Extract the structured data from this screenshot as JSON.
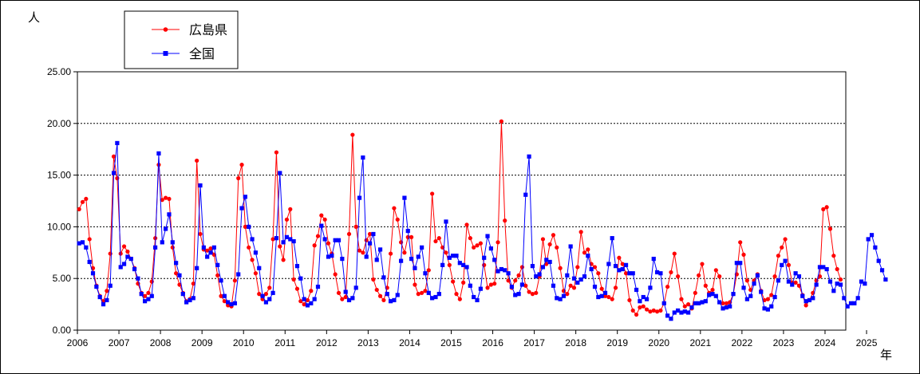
{
  "chart_data": {
    "type": "line",
    "y_unit_label": "人",
    "x_unit_label": "年",
    "ylim": [
      0,
      25
    ],
    "yticks": [
      "0.00",
      "5.00",
      "10.00",
      "15.00",
      "20.00",
      "25.00"
    ],
    "xticks": [
      "2006",
      "2007",
      "2008",
      "2009",
      "2010",
      "2011",
      "2012",
      "2013",
      "2014",
      "2015",
      "2016",
      "2017",
      "2018",
      "2019",
      "2020",
      "2021",
      "2022",
      "2023",
      "2024",
      "2025"
    ],
    "x_start": "2006-01",
    "grid": "horizontal-dashed",
    "legend_position": "top-left",
    "series": [
      {
        "name": "広島県",
        "color": "#ff0000",
        "marker": "circle",
        "values": [
          11.7,
          12.4,
          12.7,
          8.8,
          6.0,
          4.3,
          3.3,
          2.8,
          3.8,
          7.4,
          16.8,
          14.7,
          7.4,
          8.1,
          7.6,
          6.9,
          6.0,
          4.5,
          3.6,
          3.3,
          3.6,
          4.7,
          8.9,
          16.0,
          12.6,
          12.8,
          12.7,
          8.0,
          5.5,
          4.4,
          3.6,
          2.8,
          3.0,
          4.5,
          16.4,
          9.3,
          7.8,
          7.7,
          7.9,
          7.3,
          5.3,
          3.3,
          2.8,
          2.4,
          2.3,
          4.8,
          14.7,
          16.0,
          10.0,
          8.0,
          6.8,
          5.5,
          3.5,
          3.0,
          3.5,
          4.1,
          8.8,
          17.2,
          8.1,
          6.8,
          10.7,
          11.7,
          4.9,
          4.0,
          2.8,
          2.5,
          2.9,
          3.8,
          8.2,
          9.1,
          11.1,
          10.7,
          8.4,
          7.4,
          5.4,
          3.6,
          3.0,
          3.2,
          9.3,
          18.9,
          10.0,
          7.7,
          7.5,
          8.7,
          9.3,
          4.9,
          3.9,
          3.3,
          2.9,
          4.1,
          7.4,
          11.8,
          10.7,
          8.5,
          7.5,
          9.0,
          9.0,
          4.4,
          3.5,
          3.6,
          3.8,
          5.8,
          13.2,
          8.6,
          8.9,
          8.0,
          7.5,
          6.3,
          4.7,
          3.5,
          3.0,
          4.6,
          10.2,
          8.9,
          8.0,
          8.2,
          8.4,
          6.3,
          4.1,
          4.4,
          4.5,
          8.5,
          20.2,
          10.6,
          4.8,
          4.1,
          4.8,
          5.3,
          6.1,
          4.3,
          3.7,
          3.5,
          3.6,
          5.2,
          8.8,
          6.4,
          8.3,
          9.2,
          8.0,
          6.0,
          3.8,
          3.5,
          4.3,
          4.1,
          6.1,
          9.5,
          7.5,
          7.8,
          6.4,
          6.1,
          5.5,
          4.0,
          3.3,
          3.2,
          3.0,
          4.1,
          7.0,
          6.4,
          5.5,
          2.9,
          1.9,
          1.5,
          2.2,
          2.3,
          2.0,
          1.8,
          1.9,
          1.8,
          1.9,
          2.6,
          4.2,
          5.6,
          7.4,
          5.2,
          3.0,
          2.3,
          2.5,
          2.1,
          3.6,
          5.3,
          6.4,
          4.3,
          3.6,
          3.9,
          5.8,
          5.2,
          2.6,
          2.6,
          2.7,
          3.5,
          5.4,
          8.5,
          7.3,
          4.8,
          3.9,
          4.8,
          5.4,
          3.8,
          2.9,
          3.0,
          3.4,
          5.2,
          7.2,
          8.0,
          8.8,
          6.3,
          4.6,
          4.6,
          4.3,
          3.4,
          2.4,
          2.9,
          3.6,
          4.8,
          5.2,
          11.7,
          11.9,
          9.8,
          7.2,
          5.9,
          4.9
        ]
      },
      {
        "name": "全国",
        "color": "#0000ff",
        "marker": "square",
        "values": [
          8.4,
          8.5,
          8.0,
          6.6,
          5.5,
          4.2,
          3.2,
          2.5,
          2.9,
          4.3,
          15.2,
          18.1,
          6.1,
          6.4,
          7.1,
          6.9,
          5.9,
          5.0,
          3.5,
          2.8,
          3.0,
          3.3,
          8.0,
          17.1,
          8.5,
          9.8,
          11.2,
          8.5,
          6.5,
          5.3,
          3.5,
          2.7,
          2.9,
          3.1,
          6.0,
          14.0,
          8.0,
          7.1,
          7.5,
          8.0,
          6.3,
          4.8,
          3.3,
          2.7,
          2.5,
          2.6,
          5.4,
          11.8,
          12.9,
          10.0,
          8.8,
          7.5,
          6.0,
          3.3,
          2.7,
          3.0,
          3.6,
          8.9,
          15.2,
          8.5,
          9.0,
          8.8,
          8.6,
          6.2,
          5.0,
          3.0,
          2.4,
          2.6,
          3.0,
          4.2,
          10.1,
          8.8,
          7.1,
          7.2,
          8.7,
          8.7,
          6.9,
          3.7,
          2.9,
          3.1,
          4.1,
          12.8,
          16.7,
          7.1,
          8.4,
          9.3,
          6.8,
          7.8,
          5.1,
          3.5,
          2.8,
          2.9,
          3.4,
          6.7,
          12.8,
          9.6,
          6.9,
          6.0,
          7.1,
          8.0,
          5.5,
          3.6,
          3.1,
          3.2,
          3.5,
          6.3,
          10.5,
          7.0,
          7.2,
          7.2,
          6.5,
          6.3,
          6.1,
          4.3,
          3.2,
          2.9,
          4.0,
          7.0,
          9.1,
          7.9,
          6.8,
          5.7,
          5.9,
          5.8,
          5.5,
          4.2,
          3.4,
          3.5,
          4.4,
          13.1,
          16.8,
          6.2,
          5.2,
          5.4,
          6.1,
          6.8,
          6.6,
          4.3,
          3.1,
          3.0,
          3.3,
          5.3,
          8.1,
          5.0,
          4.6,
          4.9,
          5.2,
          7.2,
          5.9,
          4.2,
          3.2,
          3.3,
          3.6,
          6.4,
          8.9,
          6.2,
          5.8,
          5.9,
          6.3,
          5.5,
          5.5,
          3.9,
          2.8,
          3.2,
          3.0,
          4.1,
          6.9,
          5.6,
          5.5,
          2.6,
          1.4,
          1.1,
          1.7,
          1.9,
          1.7,
          1.8,
          1.7,
          2.2,
          2.6,
          2.6,
          2.7,
          2.8,
          3.4,
          3.5,
          3.3,
          2.7,
          2.1,
          2.2,
          2.3,
          3.5,
          6.5,
          6.5,
          4.1,
          3.0,
          3.3,
          4.5,
          5.3,
          3.7,
          2.1,
          2.0,
          2.3,
          3.2,
          4.8,
          6.3,
          6.7,
          4.7,
          4.4,
          5.5,
          5.2,
          3.3,
          2.8,
          2.9,
          3.1,
          4.4,
          6.1,
          6.1,
          5.9,
          4.7,
          3.8,
          4.5,
          4.4,
          3.1,
          2.3,
          2.6,
          2.6,
          3.1,
          4.7,
          4.5,
          8.8,
          9.2,
          8.0,
          6.7,
          5.8,
          4.9
        ]
      }
    ]
  }
}
